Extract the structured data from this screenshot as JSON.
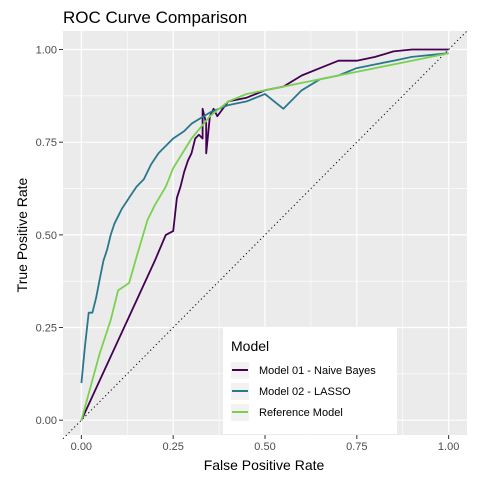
{
  "chart_data": {
    "type": "line",
    "title": "ROC Curve Comparison",
    "xlabel": "False Positive Rate",
    "ylabel": "True Positive Rate",
    "xlim": [
      -0.05,
      1.05
    ],
    "ylim": [
      -0.04,
      1.05
    ],
    "x_ticks": [
      0,
      0.25,
      0.5,
      0.75,
      1
    ],
    "y_ticks": [
      0,
      0.25,
      0.5,
      0.75,
      1
    ],
    "x_tick_labels": [
      "0.00",
      "0.25",
      "0.50",
      "0.75",
      "1.00"
    ],
    "y_tick_labels": [
      "0.00",
      "0.25",
      "0.50",
      "0.75",
      "1.00"
    ],
    "grid": true,
    "legend": {
      "title": "Model",
      "position": "bottom-right-inside"
    },
    "diagonal": {
      "style": "dotted",
      "color": "#000000",
      "from": [
        0,
        0
      ],
      "to": [
        1,
        1
      ]
    },
    "series": [
      {
        "name": "Model 01 - Naive Bayes",
        "color": "#440154",
        "points": [
          [
            0,
            0
          ],
          [
            0.2,
            0.43
          ],
          [
            0.23,
            0.5
          ],
          [
            0.25,
            0.51
          ],
          [
            0.26,
            0.6
          ],
          [
            0.27,
            0.63
          ],
          [
            0.28,
            0.67
          ],
          [
            0.29,
            0.7
          ],
          [
            0.3,
            0.72
          ],
          [
            0.31,
            0.76
          ],
          [
            0.32,
            0.77
          ],
          [
            0.33,
            0.76
          ],
          [
            0.33,
            0.84
          ],
          [
            0.34,
            0.8
          ],
          [
            0.34,
            0.72
          ],
          [
            0.35,
            0.82
          ],
          [
            0.36,
            0.84
          ],
          [
            0.37,
            0.82
          ],
          [
            0.4,
            0.86
          ],
          [
            0.45,
            0.87
          ],
          [
            0.5,
            0.89
          ],
          [
            0.55,
            0.9
          ],
          [
            0.6,
            0.93
          ],
          [
            0.65,
            0.95
          ],
          [
            0.7,
            0.97
          ],
          [
            0.75,
            0.97
          ],
          [
            0.8,
            0.98
          ],
          [
            0.85,
            0.995
          ],
          [
            0.9,
            1.0
          ],
          [
            1,
            1.0
          ]
        ]
      },
      {
        "name": "Model 02 - LASSO",
        "color": "#2a788e",
        "points": [
          [
            0,
            0.1
          ],
          [
            0.01,
            0.2
          ],
          [
            0.02,
            0.29
          ],
          [
            0.03,
            0.29
          ],
          [
            0.04,
            0.33
          ],
          [
            0.05,
            0.38
          ],
          [
            0.06,
            0.43
          ],
          [
            0.07,
            0.46
          ],
          [
            0.08,
            0.5
          ],
          [
            0.09,
            0.53
          ],
          [
            0.1,
            0.55
          ],
          [
            0.11,
            0.57
          ],
          [
            0.13,
            0.6
          ],
          [
            0.15,
            0.63
          ],
          [
            0.17,
            0.65
          ],
          [
            0.19,
            0.69
          ],
          [
            0.21,
            0.72
          ],
          [
            0.23,
            0.74
          ],
          [
            0.25,
            0.76
          ],
          [
            0.28,
            0.78
          ],
          [
            0.3,
            0.8
          ],
          [
            0.35,
            0.83
          ],
          [
            0.4,
            0.85
          ],
          [
            0.45,
            0.86
          ],
          [
            0.5,
            0.88
          ],
          [
            0.55,
            0.84
          ],
          [
            0.6,
            0.89
          ],
          [
            0.65,
            0.92
          ],
          [
            0.7,
            0.93
          ],
          [
            0.75,
            0.95
          ],
          [
            0.8,
            0.96
          ],
          [
            0.85,
            0.97
          ],
          [
            0.9,
            0.98
          ],
          [
            1,
            0.99
          ]
        ]
      },
      {
        "name": "Reference Model",
        "color": "#7ad151",
        "points": [
          [
            0,
            0
          ],
          [
            0.05,
            0.18
          ],
          [
            0.08,
            0.27
          ],
          [
            0.1,
            0.35
          ],
          [
            0.13,
            0.37
          ],
          [
            0.15,
            0.44
          ],
          [
            0.18,
            0.54
          ],
          [
            0.2,
            0.58
          ],
          [
            0.23,
            0.63
          ],
          [
            0.25,
            0.68
          ],
          [
            0.3,
            0.76
          ],
          [
            0.35,
            0.82
          ],
          [
            0.4,
            0.86
          ],
          [
            0.45,
            0.88
          ],
          [
            0.5,
            0.89
          ],
          [
            0.55,
            0.9
          ],
          [
            0.6,
            0.91
          ],
          [
            0.7,
            0.93
          ],
          [
            0.8,
            0.95
          ],
          [
            0.9,
            0.97
          ],
          [
            1,
            0.99
          ]
        ]
      }
    ]
  }
}
